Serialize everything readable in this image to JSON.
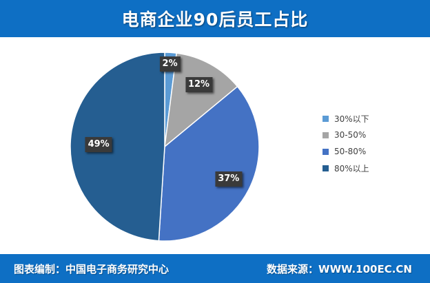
{
  "header": {
    "title": "电商企业90后员工占比"
  },
  "chart_data": {
    "type": "pie",
    "title": "电商企业90后员工占比",
    "categories": [
      "30%以下",
      "30-50%",
      "50-80%",
      "80%以上"
    ],
    "values": [
      2,
      12,
      37,
      49
    ],
    "labels": [
      "2%",
      "12%",
      "37%",
      "49%"
    ],
    "colors": [
      "#5b9bd5",
      "#a5a5a5",
      "#4472c4",
      "#255e91"
    ],
    "start_angle": "12 o'clock",
    "direction": "clockwise",
    "legend_position": "right"
  },
  "footer": {
    "left_text": "图表编制：中国电子商务研究中心",
    "right_text": "数据来源：WWW.100EC.CN"
  }
}
